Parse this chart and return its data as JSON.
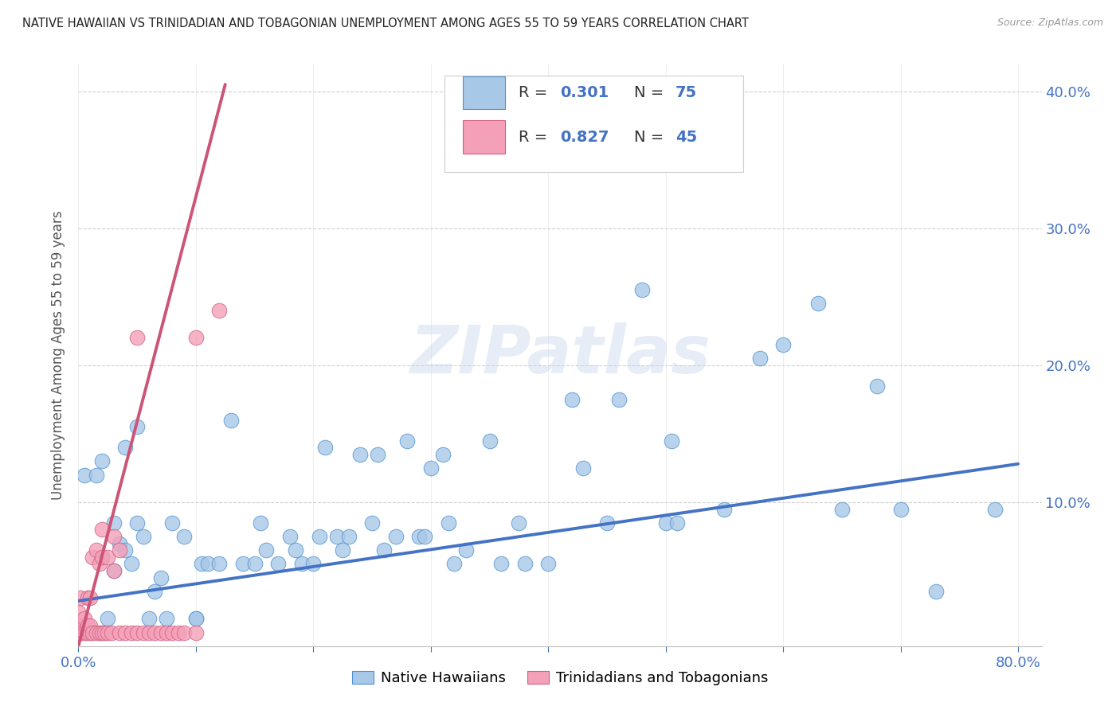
{
  "title": "NATIVE HAWAIIAN VS TRINIDADIAN AND TOBAGONIAN UNEMPLOYMENT AMONG AGES 55 TO 59 YEARS CORRELATION CHART",
  "source": "Source: ZipAtlas.com",
  "ylabel": "Unemployment Among Ages 55 to 59 years",
  "xlim": [
    0.0,
    0.82
  ],
  "ylim": [
    -0.005,
    0.42
  ],
  "xticks": [
    0.0,
    0.1,
    0.2,
    0.3,
    0.4,
    0.5,
    0.6,
    0.7,
    0.8
  ],
  "xticklabels": [
    "0.0%",
    "",
    "",
    "",
    "",
    "",
    "",
    "",
    "80.0%"
  ],
  "yticks": [
    0.0,
    0.1,
    0.2,
    0.3,
    0.4
  ],
  "yticklabels": [
    "",
    "10.0%",
    "20.0%",
    "30.0%",
    "40.0%"
  ],
  "R_blue": "0.301",
  "N_blue": "75",
  "R_pink": "0.827",
  "N_pink": "45",
  "blue_fill": "#a8c8e8",
  "pink_fill": "#f4a0b8",
  "blue_edge": "#5090d0",
  "pink_edge": "#d06080",
  "blue_line": "#4472c4",
  "pink_line": "#cc5577",
  "legend_blue": "Native Hawaiians",
  "legend_pink": "Trinidadians and Tobagonians",
  "watermark": "ZIPatlas",
  "tick_color": "#4472c4",
  "grid_color": "#d0d0d0",
  "blue_points_x": [
    0.005,
    0.015,
    0.02,
    0.02,
    0.025,
    0.03,
    0.03,
    0.035,
    0.04,
    0.04,
    0.045,
    0.05,
    0.05,
    0.055,
    0.06,
    0.065,
    0.07,
    0.075,
    0.08,
    0.09,
    0.1,
    0.1,
    0.105,
    0.11,
    0.12,
    0.13,
    0.14,
    0.15,
    0.155,
    0.16,
    0.17,
    0.18,
    0.185,
    0.19,
    0.2,
    0.205,
    0.21,
    0.22,
    0.225,
    0.23,
    0.24,
    0.25,
    0.255,
    0.26,
    0.27,
    0.28,
    0.29,
    0.295,
    0.3,
    0.31,
    0.315,
    0.32,
    0.33,
    0.35,
    0.36,
    0.375,
    0.38,
    0.4,
    0.42,
    0.43,
    0.45,
    0.46,
    0.48,
    0.5,
    0.505,
    0.51,
    0.55,
    0.58,
    0.6,
    0.63,
    0.65,
    0.68,
    0.7,
    0.73,
    0.78
  ],
  "blue_points_y": [
    0.12,
    0.12,
    0.13,
    0.06,
    0.015,
    0.05,
    0.085,
    0.07,
    0.065,
    0.14,
    0.055,
    0.085,
    0.155,
    0.075,
    0.015,
    0.035,
    0.045,
    0.015,
    0.085,
    0.075,
    0.015,
    0.015,
    0.055,
    0.055,
    0.055,
    0.16,
    0.055,
    0.055,
    0.085,
    0.065,
    0.055,
    0.075,
    0.065,
    0.055,
    0.055,
    0.075,
    0.14,
    0.075,
    0.065,
    0.075,
    0.135,
    0.085,
    0.135,
    0.065,
    0.075,
    0.145,
    0.075,
    0.075,
    0.125,
    0.135,
    0.085,
    0.055,
    0.065,
    0.145,
    0.055,
    0.085,
    0.055,
    0.055,
    0.175,
    0.125,
    0.085,
    0.175,
    0.255,
    0.085,
    0.145,
    0.085,
    0.095,
    0.205,
    0.215,
    0.245,
    0.095,
    0.185,
    0.095,
    0.035,
    0.095
  ],
  "pink_points_x": [
    0.0,
    0.0,
    0.0,
    0.002,
    0.002,
    0.005,
    0.005,
    0.007,
    0.008,
    0.008,
    0.01,
    0.01,
    0.01,
    0.012,
    0.012,
    0.015,
    0.015,
    0.018,
    0.018,
    0.02,
    0.02,
    0.02,
    0.022,
    0.025,
    0.025,
    0.028,
    0.03,
    0.03,
    0.035,
    0.035,
    0.04,
    0.045,
    0.05,
    0.05,
    0.055,
    0.06,
    0.065,
    0.07,
    0.075,
    0.08,
    0.085,
    0.09,
    0.1,
    0.1,
    0.12
  ],
  "pink_points_y": [
    0.005,
    0.01,
    0.02,
    0.005,
    0.03,
    0.005,
    0.015,
    0.005,
    0.01,
    0.03,
    0.005,
    0.01,
    0.03,
    0.005,
    0.06,
    0.005,
    0.065,
    0.005,
    0.055,
    0.005,
    0.06,
    0.08,
    0.005,
    0.005,
    0.06,
    0.005,
    0.05,
    0.075,
    0.005,
    0.065,
    0.005,
    0.005,
    0.005,
    0.22,
    0.005,
    0.005,
    0.005,
    0.005,
    0.005,
    0.005,
    0.005,
    0.005,
    0.005,
    0.22,
    0.24
  ],
  "blue_trend_x": [
    0.0,
    0.8
  ],
  "blue_trend_y": [
    0.028,
    0.128
  ],
  "pink_trend_x": [
    0.0,
    0.125
  ],
  "pink_trend_y": [
    -0.005,
    0.405
  ],
  "background": "#ffffff"
}
